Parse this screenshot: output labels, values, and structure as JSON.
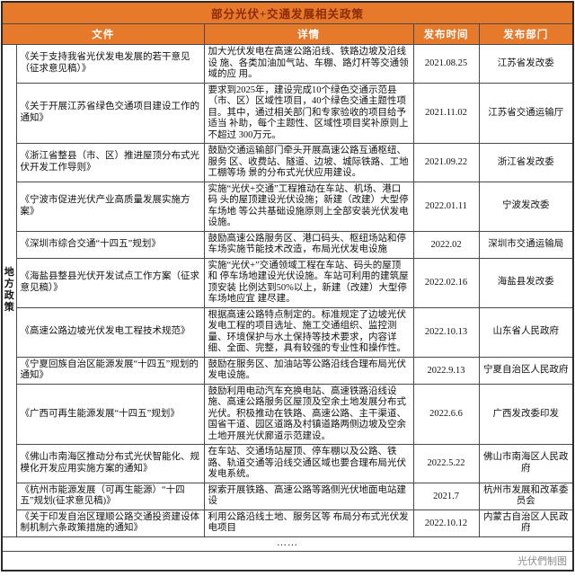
{
  "header": {
    "title": "部分光伏+交通发展相关政策"
  },
  "ellipsis": "……",
  "footer": {
    "credit": "光伏們制图"
  },
  "colors": {
    "accent_orange": "#E7792B",
    "title_text": "#8C2B07",
    "header_text": "#FFFFFF",
    "border": "#4A4A4A",
    "credit_text": "#8A8A8A"
  },
  "chart_data": {
    "type": "table",
    "title": "部分光伏+交通发展相关政策",
    "columns": [
      "文件",
      "详情",
      "发布时间",
      "发布部门"
    ],
    "row_group_label": "地方政策",
    "rows": [
      {
        "file": "《关于支持我省光伏发电发展的若干意见（征求意见稿）》",
        "detail": "加大光伏发电在高速公路沿线、铁路边坡及沿线设 施、各类加油加气站、车棚、路灯杆等交通领域的应 用。",
        "date": "2021.08.25",
        "dept": "江苏省发改委"
      },
      {
        "file": "《关于开展江苏省绿色交通项目建设工作的通知》",
        "detail": "要求到2025年，建设完成10个绿色交通示范县（市、区）区域性项目，40个绿色交通主题性项 目。其中，通过相关部门和专家验收的项目给予适当 补助，每个主题性、区域性项目奖补原则上不超过 300万元。",
        "date": "2021.11.02",
        "dept": "江苏省交通运输厅"
      },
      {
        "file": "《浙江省整县（市、区）推进屋顶分布式光伏开发工作导则》",
        "detail": "鼓励交通运输部门牵头开展高速公路互通枢纽、服务 区、收费站、隧道、边坡、城际铁路、工地工棚等场 景的分布式光伏应用建设。",
        "date": "2021.09.22",
        "dept": "浙江省发改委"
      },
      {
        "file": "《宁波市促进光伏产业高质量发展实施方案》",
        "detail": "实施“光伏+交通”工程推动在车站、机场、港口码 头的屋顶建设光伏设施；新建（改建）大型停车场地 等公共基础设施原则上全部安装光伏发电设施。",
        "date": "2022.01.11",
        "dept": "宁波发改委"
      },
      {
        "file": "《深圳市综合交通“十四五”规划》",
        "detail": "鼓励高速公路服务区、港口码头、枢纽场站和停车场实施节能技术改造，布局光伏发电设施",
        "date": "2022.02",
        "dept": "深圳市交通运输局"
      },
      {
        "file": "《海盐县整县光伏开发试点工作方案（征求意见稿）》",
        "detail": "实施“光伏+”交通领域工程在车站、码头的屋顶和 停车场地建设光伏设施。车站可利用的建筑屋顶安装 比例达到50%以上，新建（改建）大型停车场地应宜 建尽建。",
        "date": "2022.02.16",
        "dept": "海盐县发改委"
      },
      {
        "file": "《高速公路边坡光伏发电工程技术规范》",
        "detail": "根据高速公路特点制定的。标准规定了边坡光伏发电工程的项目选址、施工交通组织、监控测量、环境保护与水土保持等技术要求，内容详细、全面、完整，具有较强的专业性和操作性。",
        "date": "2022.10.13",
        "dept": "山东省人民政府"
      },
      {
        "file": "《宁夏回族自治区能源发展“十四五”规划的通知》",
        "detail": "鼓励在服务区、加油站等公路沿线合理布局光伏发电设施。",
        "date": "2022.9.13",
        "dept": "宁夏自治区人民政府"
      },
      {
        "file": "《广西可再生能源发展“十四五”规划》",
        "detail": "鼓励利用电动汽车充换电站、高速铁路沿线设施、高速公路服务区屋顶及空余土地发展分布式光伏。积极推动在铁路、高速公路、主干渠道、国省干道、园区道路及村镇道路两侧边坡及空余土地开展光伏廊道示范建设。",
        "date": "2022.6.6",
        "dept": "广西发改委印发"
      },
      {
        "file": "《佛山市南海区推动分布式光伏智能化、规模化开发应用实施方案的通知》",
        "detail": "在车站、交通场站屋顶、停车棚以及公路、铁路、轨道交通等沿线交通区域也要合理布局光伏发电系统。",
        "date": "2022.5.22",
        "dept": "佛山市南海区人民政府"
      },
      {
        "file": "《杭州市能源发展（可再生能源）“十四五”规划(征求意见稿)》",
        "detail": "探索开展铁路、高速公路等路侧光伏地面电站建设",
        "date": "2021.7",
        "dept": "杭州市发展和改革委员会"
      },
      {
        "file": "《关于印发自治区理顺公路交通投资建设体制机制六条政策措施的通知》",
        "detail": "利用公路沿线土地、服务区等 布局分布式光伏发电项目",
        "date": "2022.10.12",
        "dept": "内蒙古自治区人民政府"
      }
    ]
  }
}
